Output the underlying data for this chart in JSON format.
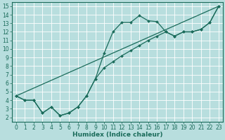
{
  "title": "",
  "xlabel": "Humidex (Indice chaleur)",
  "bg_color": "#b8dede",
  "line_color": "#1a6b5a",
  "xlim": [
    -0.5,
    23.5
  ],
  "ylim": [
    1.5,
    15.5
  ],
  "xticks": [
    0,
    1,
    2,
    3,
    4,
    5,
    6,
    7,
    8,
    9,
    10,
    11,
    12,
    13,
    14,
    15,
    16,
    17,
    18,
    19,
    20,
    21,
    22,
    23
  ],
  "yticks": [
    2,
    3,
    4,
    5,
    6,
    7,
    8,
    9,
    10,
    11,
    12,
    13,
    14,
    15
  ],
  "line1_x": [
    0,
    1,
    2,
    3,
    4,
    5,
    6,
    7,
    8,
    9,
    10,
    11,
    12,
    13,
    14,
    15,
    16,
    17,
    18,
    19,
    20,
    21,
    22,
    23
  ],
  "line1_y": [
    4.5,
    4.0,
    4.0,
    2.5,
    3.2,
    2.2,
    2.5,
    3.2,
    4.5,
    6.5,
    9.5,
    12.0,
    13.1,
    13.1,
    13.9,
    13.3,
    13.2,
    12.0,
    11.5,
    12.0,
    12.0,
    12.3,
    13.1,
    15.0
  ],
  "line2_x": [
    0,
    1,
    2,
    3,
    4,
    5,
    6,
    7,
    8,
    9,
    10,
    11,
    12,
    13,
    14,
    15,
    16,
    17,
    18,
    19,
    20,
    21,
    22,
    23
  ],
  "line2_y": [
    4.5,
    4.0,
    4.0,
    2.5,
    3.2,
    2.2,
    2.5,
    3.2,
    4.5,
    6.5,
    7.8,
    8.5,
    9.2,
    9.8,
    10.4,
    11.0,
    11.5,
    12.0,
    11.5,
    12.0,
    12.0,
    12.3,
    13.1,
    15.0
  ],
  "line3_x": [
    0,
    23
  ],
  "line3_y": [
    4.5,
    15.0
  ],
  "grid_color": "#ffffff",
  "tick_fontsize": 5.5,
  "xlabel_fontsize": 6.5
}
